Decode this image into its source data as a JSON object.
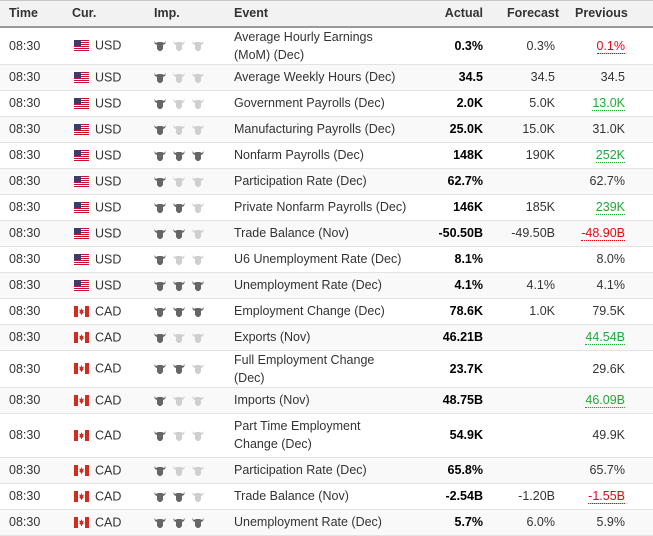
{
  "header": {
    "time": "Time",
    "currency": "Cur.",
    "importance": "Imp.",
    "event": "Event",
    "actual": "Actual",
    "forecast": "Forecast",
    "previous": "Previous"
  },
  "colors": {
    "positive": "#1faa3a",
    "negative": "#e50914",
    "bull_active": "#666666",
    "bull_inactive": "#cfcfcf"
  },
  "rows": [
    {
      "time": "08:30",
      "cur": "USD",
      "imp": 1,
      "event": "Average Hourly Earnings (MoM) (Dec)",
      "actual": "0.3%",
      "actual_tone": "neutral",
      "forecast": "0.3%",
      "previous": "0.1%",
      "prev_tone": "neg"
    },
    {
      "time": "08:30",
      "cur": "USD",
      "imp": 1,
      "event": "Average Weekly Hours (Dec)",
      "actual": "34.5",
      "actual_tone": "neutral",
      "forecast": "34.5",
      "previous": "34.5",
      "prev_tone": "neutral"
    },
    {
      "time": "08:30",
      "cur": "USD",
      "imp": 1,
      "event": "Government Payrolls (Dec)",
      "actual": "2.0K",
      "actual_tone": "neg",
      "forecast": "5.0K",
      "previous": "13.0K",
      "prev_tone": "pos"
    },
    {
      "time": "08:30",
      "cur": "USD",
      "imp": 1,
      "event": "Manufacturing Payrolls (Dec)",
      "actual": "25.0K",
      "actual_tone": "pos",
      "forecast": "15.0K",
      "previous": "31.0K",
      "prev_tone": "neutral"
    },
    {
      "time": "08:30",
      "cur": "USD",
      "imp": 3,
      "event": "Nonfarm Payrolls (Dec)",
      "actual": "148K",
      "actual_tone": "neg",
      "forecast": "190K",
      "previous": "252K",
      "prev_tone": "pos"
    },
    {
      "time": "08:30",
      "cur": "USD",
      "imp": 1,
      "event": "Participation Rate (Dec)",
      "actual": "62.7%",
      "actual_tone": "neutral",
      "forecast": "",
      "previous": "62.7%",
      "prev_tone": "neutral"
    },
    {
      "time": "08:30",
      "cur": "USD",
      "imp": 2,
      "event": "Private Nonfarm Payrolls (Dec)",
      "actual": "146K",
      "actual_tone": "neg",
      "forecast": "185K",
      "previous": "239K",
      "prev_tone": "pos"
    },
    {
      "time": "08:30",
      "cur": "USD",
      "imp": 2,
      "event": "Trade Balance (Nov)",
      "actual": "-50.50B",
      "actual_tone": "neg",
      "forecast": "-49.50B",
      "previous": "-48.90B",
      "prev_tone": "neg"
    },
    {
      "time": "08:30",
      "cur": "USD",
      "imp": 1,
      "event": "U6 Unemployment Rate (Dec)",
      "actual": "8.1%",
      "actual_tone": "neutral",
      "forecast": "",
      "previous": "8.0%",
      "prev_tone": "neutral"
    },
    {
      "time": "08:30",
      "cur": "USD",
      "imp": 3,
      "event": "Unemployment Rate (Dec)",
      "actual": "4.1%",
      "actual_tone": "neutral",
      "forecast": "4.1%",
      "previous": "4.1%",
      "prev_tone": "neutral"
    },
    {
      "time": "08:30",
      "cur": "CAD",
      "imp": 3,
      "event": "Employment Change (Dec)",
      "actual": "78.6K",
      "actual_tone": "pos",
      "forecast": "1.0K",
      "previous": "79.5K",
      "prev_tone": "neutral"
    },
    {
      "time": "08:30",
      "cur": "CAD",
      "imp": 1,
      "event": "Exports (Nov)",
      "actual": "46.21B",
      "actual_tone": "neutral",
      "forecast": "",
      "previous": "44.54B",
      "prev_tone": "pos"
    },
    {
      "time": "08:30",
      "cur": "CAD",
      "imp": 2,
      "event": "Full Employment Change (Dec)",
      "actual": "23.7K",
      "actual_tone": "neutral",
      "forecast": "",
      "previous": "29.6K",
      "prev_tone": "neutral"
    },
    {
      "time": "08:30",
      "cur": "CAD",
      "imp": 1,
      "event": "Imports (Nov)",
      "actual": "48.75B",
      "actual_tone": "neutral",
      "forecast": "",
      "previous": "46.09B",
      "prev_tone": "pos"
    },
    {
      "time": "08:30",
      "cur": "CAD",
      "imp": 1,
      "event": "Part Time Employment Change (Dec)",
      "actual": "54.9K",
      "actual_tone": "neutral",
      "forecast": "",
      "previous": "49.9K",
      "prev_tone": "neutral",
      "tall": true
    },
    {
      "time": "08:30",
      "cur": "CAD",
      "imp": 1,
      "event": "Participation Rate (Dec)",
      "actual": "65.8%",
      "actual_tone": "neutral",
      "forecast": "",
      "previous": "65.7%",
      "prev_tone": "neutral"
    },
    {
      "time": "08:30",
      "cur": "CAD",
      "imp": 2,
      "event": "Trade Balance (Nov)",
      "actual": "-2.54B",
      "actual_tone": "neg",
      "forecast": "-1.20B",
      "previous": "-1.55B",
      "prev_tone": "neg"
    },
    {
      "time": "08:30",
      "cur": "CAD",
      "imp": 3,
      "event": "Unemployment Rate (Dec)",
      "actual": "5.7%",
      "actual_tone": "pos",
      "forecast": "6.0%",
      "previous": "5.9%",
      "prev_tone": "neutral"
    }
  ]
}
